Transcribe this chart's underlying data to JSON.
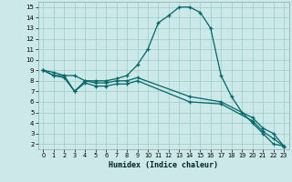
{
  "bg_color": "#cce8e8",
  "grid_color": "#99cccc",
  "line_color": "#006666",
  "xlabel": "Humidex (Indice chaleur)",
  "xlim": [
    -0.5,
    23.5
  ],
  "ylim": [
    1.5,
    15.5
  ],
  "xticks": [
    0,
    1,
    2,
    3,
    4,
    5,
    6,
    7,
    8,
    9,
    10,
    11,
    12,
    13,
    14,
    15,
    16,
    17,
    18,
    19,
    20,
    21,
    22,
    23
  ],
  "yticks": [
    2,
    3,
    4,
    5,
    6,
    7,
    8,
    9,
    10,
    11,
    12,
    13,
    14,
    15
  ],
  "curve1_x": [
    0,
    1,
    2,
    3,
    4,
    5,
    6,
    7,
    8,
    9,
    10,
    11,
    12,
    13,
    14,
    15,
    16,
    17,
    18,
    19,
    20,
    21,
    22,
    23
  ],
  "curve1_y": [
    9,
    8.5,
    8.5,
    8.5,
    8.0,
    8.0,
    8.0,
    8.2,
    8.5,
    9.5,
    11.0,
    13.5,
    14.2,
    15.0,
    15.0,
    14.5,
    13.0,
    8.5,
    6.5,
    5.0,
    4.0,
    3.0,
    2.0,
    1.8
  ],
  "curve2_x": [
    0,
    1,
    2,
    3,
    4,
    5,
    6,
    7,
    8,
    9,
    14,
    17,
    20,
    21,
    22,
    23
  ],
  "curve2_y": [
    9,
    8.8,
    8.5,
    7.0,
    8.0,
    7.8,
    7.8,
    8.0,
    8.0,
    8.3,
    6.5,
    6.0,
    4.5,
    3.5,
    3.0,
    1.8
  ],
  "curve3_x": [
    0,
    1,
    2,
    3,
    4,
    5,
    6,
    7,
    8,
    9,
    14,
    17,
    20,
    21,
    22,
    23
  ],
  "curve3_y": [
    9,
    8.5,
    8.3,
    7.0,
    7.8,
    7.5,
    7.5,
    7.7,
    7.7,
    8.0,
    6.0,
    5.8,
    4.2,
    3.2,
    2.5,
    1.8
  ]
}
